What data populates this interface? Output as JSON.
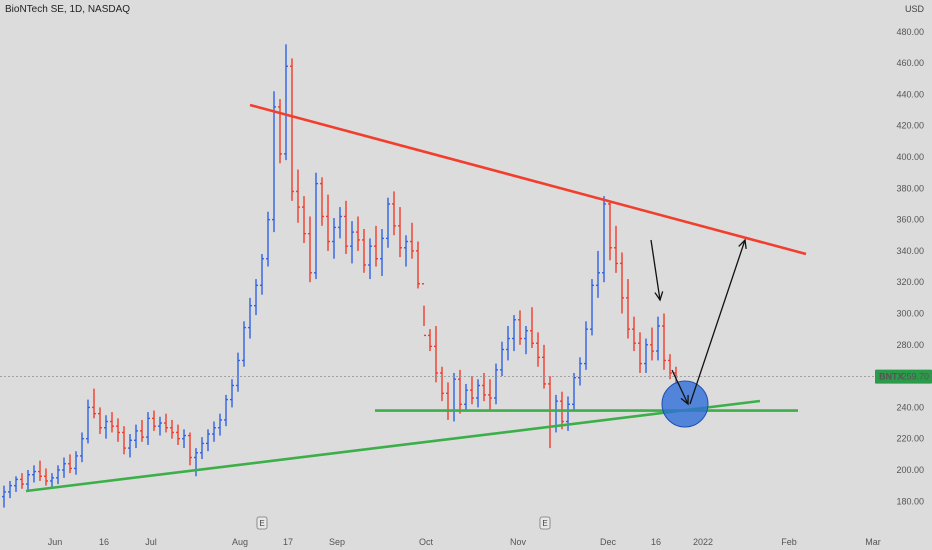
{
  "header": {
    "title": "BioNTech SE, 1D, NASDAQ",
    "currency": "USD"
  },
  "price_tag": {
    "symbol": "BNTX",
    "price": "259.70"
  },
  "event_marker": "E",
  "chart_data": {
    "type": "candlestick",
    "title": "BioNTech SE, 1D, NASDAQ",
    "ylabel": "USD",
    "ylim": [
      170,
      490
    ],
    "y_ticks": [
      "180.00",
      "200.00",
      "220.00",
      "240.00",
      "260.00",
      "280.00",
      "300.00",
      "320.00",
      "340.00",
      "360.00",
      "380.00",
      "400.00",
      "420.00",
      "440.00",
      "460.00",
      "480.00"
    ],
    "x_ticks": [
      "Jun",
      "16",
      "Jul",
      "Aug",
      "17",
      "Sep",
      "Oct",
      "Nov",
      "Dec",
      "16",
      "2022",
      "Feb",
      "Mar"
    ],
    "last_price": 259.7,
    "series": [
      {
        "values": [
          [
            183,
            190,
            176,
            186
          ],
          [
            186,
            193,
            182,
            190
          ],
          [
            190,
            196,
            186,
            194
          ],
          [
            194,
            198,
            188,
            191
          ],
          [
            191,
            200,
            187,
            197
          ],
          [
            197,
            203,
            192,
            199
          ],
          [
            199,
            206,
            193,
            196
          ],
          [
            196,
            201,
            190,
            193
          ],
          [
            193,
            198,
            188,
            195
          ],
          [
            195,
            203,
            191,
            200
          ],
          [
            200,
            208,
            195,
            204
          ],
          [
            204,
            210,
            198,
            201
          ],
          [
            201,
            212,
            197,
            209
          ],
          [
            209,
            224,
            205,
            220
          ],
          [
            220,
            245,
            217,
            240
          ],
          [
            240,
            252,
            233,
            236
          ],
          [
            236,
            240,
            223,
            227
          ],
          [
            227,
            235,
            220,
            231
          ],
          [
            231,
            237,
            224,
            228
          ],
          [
            228,
            233,
            218,
            224
          ],
          [
            224,
            228,
            210,
            214
          ],
          [
            214,
            223,
            208,
            219
          ],
          [
            219,
            229,
            214,
            225
          ],
          [
            225,
            232,
            218,
            221
          ],
          [
            221,
            237,
            216,
            233
          ],
          [
            233,
            238,
            225,
            228
          ],
          [
            228,
            234,
            222,
            230
          ],
          [
            230,
            236,
            224,
            227
          ],
          [
            227,
            232,
            220,
            224
          ],
          [
            224,
            229,
            216,
            220
          ],
          [
            220,
            226,
            214,
            222
          ],
          [
            222,
            224,
            203,
            208
          ],
          [
            208,
            214,
            196,
            211
          ],
          [
            211,
            221,
            207,
            217
          ],
          [
            217,
            226,
            212,
            223
          ],
          [
            223,
            231,
            218,
            227
          ],
          [
            227,
            236,
            222,
            232
          ],
          [
            232,
            248,
            228,
            245
          ],
          [
            245,
            258,
            240,
            254
          ],
          [
            254,
            275,
            250,
            270
          ],
          [
            270,
            295,
            266,
            291
          ],
          [
            291,
            310,
            284,
            305
          ],
          [
            305,
            322,
            299,
            318
          ],
          [
            318,
            338,
            312,
            335
          ],
          [
            335,
            365,
            330,
            360
          ],
          [
            360,
            442,
            352,
            432
          ],
          [
            432,
            437,
            396,
            402
          ],
          [
            402,
            472,
            398,
            458
          ],
          [
            458,
            463,
            372,
            378
          ],
          [
            378,
            392,
            358,
            368
          ],
          [
            368,
            375,
            345,
            351
          ],
          [
            351,
            362,
            320,
            326
          ],
          [
            326,
            390,
            322,
            383
          ],
          [
            383,
            387,
            356,
            362
          ],
          [
            362,
            376,
            340,
            346
          ],
          [
            346,
            361,
            335,
            355
          ],
          [
            355,
            368,
            348,
            362
          ],
          [
            362,
            372,
            338,
            343
          ],
          [
            343,
            359,
            332,
            352
          ],
          [
            352,
            362,
            340,
            347
          ],
          [
            347,
            354,
            326,
            331
          ],
          [
            331,
            348,
            322,
            343
          ],
          [
            343,
            356,
            330,
            335
          ],
          [
            335,
            354,
            324,
            348
          ],
          [
            348,
            374,
            342,
            370
          ],
          [
            370,
            378,
            350,
            356
          ],
          [
            356,
            368,
            336,
            342
          ],
          [
            342,
            350,
            330,
            346
          ],
          [
            346,
            358,
            335,
            340
          ],
          [
            340,
            346,
            316,
            319
          ],
          [
            319,
            305,
            292,
            286
          ],
          [
            286,
            290,
            276,
            279
          ],
          [
            279,
            292,
            256,
            262
          ],
          [
            262,
            266,
            244,
            249
          ],
          [
            249,
            256,
            232,
            238
          ],
          [
            238,
            262,
            231,
            258
          ],
          [
            258,
            264,
            236,
            242
          ],
          [
            242,
            255,
            238,
            251
          ],
          [
            251,
            260,
            242,
            246
          ],
          [
            246,
            258,
            240,
            254
          ],
          [
            254,
            262,
            244,
            248
          ],
          [
            248,
            258,
            238,
            246
          ],
          [
            246,
            268,
            242,
            264
          ],
          [
            264,
            282,
            260,
            277
          ],
          [
            277,
            292,
            270,
            284
          ],
          [
            284,
            299,
            276,
            296
          ],
          [
            296,
            302,
            280,
            284
          ],
          [
            284,
            292,
            274,
            289
          ],
          [
            289,
            304,
            278,
            281
          ],
          [
            281,
            288,
            266,
            272
          ],
          [
            272,
            280,
            252,
            255
          ],
          [
            255,
            260,
            214,
            228
          ],
          [
            228,
            248,
            224,
            244
          ],
          [
            244,
            250,
            226,
            231
          ],
          [
            231,
            247,
            225,
            242
          ],
          [
            242,
            262,
            238,
            259
          ],
          [
            259,
            272,
            254,
            268
          ],
          [
            268,
            295,
            264,
            290
          ],
          [
            290,
            322,
            286,
            318
          ],
          [
            318,
            340,
            310,
            326
          ],
          [
            326,
            375,
            320,
            370
          ],
          [
            370,
            372,
            334,
            342
          ],
          [
            342,
            356,
            326,
            332
          ],
          [
            332,
            339,
            300,
            310
          ],
          [
            310,
            322,
            284,
            290
          ],
          [
            290,
            298,
            276,
            281
          ],
          [
            281,
            288,
            262,
            268
          ],
          [
            268,
            284,
            262,
            280
          ],
          [
            280,
            291,
            270,
            276
          ],
          [
            276,
            298,
            270,
            292
          ],
          [
            292,
            300,
            264,
            270
          ],
          [
            270,
            274,
            258,
            262
          ],
          [
            262,
            266,
            255,
            259.7
          ]
        ]
      }
    ],
    "annotations": [
      {
        "type": "trendline",
        "color": "#f23f2d",
        "from": [
          "2021-08-09",
          432
        ],
        "to": [
          "2022-01-26",
          345
        ]
      },
      {
        "type": "trendline",
        "color": "#3caf49",
        "from": [
          "2021-05-26",
          188
        ],
        "to": [
          "2022-01-11",
          245
        ]
      },
      {
        "type": "horizontal",
        "color": "#3caf49",
        "value": 238
      },
      {
        "type": "arrow",
        "color": "#111111",
        "from": [
          "2021-12-22",
          352
        ],
        "to": [
          "2021-12-24",
          318
        ]
      },
      {
        "type": "arrow",
        "color": "#111111",
        "from": [
          "2021-12-26",
          278
        ],
        "to": [
          "2021-12-29",
          242
        ]
      },
      {
        "type": "arrow",
        "color": "#111111",
        "from": [
          "2021-12-29",
          240
        ],
        "to": [
          "2022-01-21",
          350
        ]
      },
      {
        "type": "circle",
        "color": "#2f6fd8",
        "center": [
          "2021-12-30",
          241
        ]
      }
    ]
  }
}
